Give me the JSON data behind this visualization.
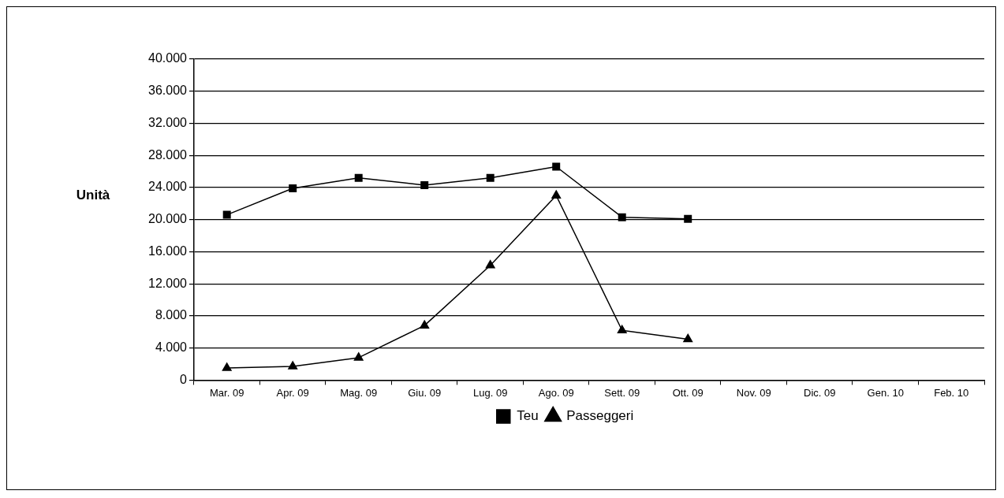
{
  "chart_data": {
    "type": "line",
    "ylabel": "Unità",
    "categories": [
      "Mar. 09",
      "Apr. 09",
      "Mag. 09",
      "Giu. 09",
      "Lug. 09",
      "Ago. 09",
      "Sett. 09",
      "Ott. 09",
      "Nov. 09",
      "Dic. 09",
      "Gen. 10",
      "Feb. 10"
    ],
    "series": [
      {
        "name": "Teu",
        "color": "#000000",
        "marker": "square",
        "values": [
          20600,
          23900,
          25200,
          24300,
          25200,
          26600,
          20300,
          20100,
          null,
          null,
          null,
          null
        ]
      },
      {
        "name": "Passeggeri",
        "color": "#000000",
        "marker": "triangle",
        "values": [
          1500,
          1700,
          2800,
          6800,
          14300,
          23000,
          6200,
          5100,
          null,
          null,
          null,
          null
        ]
      }
    ],
    "ylim": [
      0,
      40000
    ],
    "yticks": [
      0,
      {
        "value": 4000,
        "label": "4.000"
      },
      {
        "value": 8000,
        "label": "8.000"
      },
      {
        "value": 12000,
        "label": "12.000"
      },
      {
        "value": 16000,
        "label": "16.000"
      },
      {
        "value": 20000,
        "label": "20.000"
      },
      {
        "value": 24000,
        "label": "24.000"
      },
      {
        "value": 28000,
        "label": "28.000"
      },
      {
        "value": 32000,
        "label": "32.000"
      },
      {
        "value": 36000,
        "label": "36.000"
      },
      {
        "value": 40000,
        "label": "40.000"
      }
    ],
    "grid": "y",
    "legend": "bottom",
    "line_style": "solid"
  }
}
